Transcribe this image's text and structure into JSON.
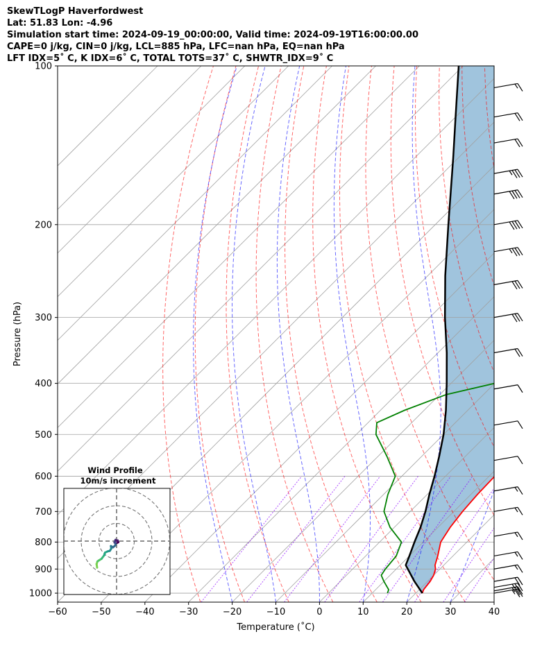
{
  "header": {
    "line1": "SkewTLogP Haverfordwest",
    "line2": "Lat: 51.83   Lon: -4.96",
    "line3": "Simulation start time: 2024-09-19_00:00:00, Valid time: 2024-09-19T16:00:00.00",
    "line4": "CAPE=0 j/kg, CIN=0 j/kg, LCL=885 hPa, LFC=nan hPa, EQ=nan hPa",
    "line5": "LFT IDX=5˚ C, K IDX=6˚ C, TOTAL TOTS=37˚ C, SHWTR_IDX=9˚ C"
  },
  "chart_data": {
    "type": "skew-t log-p",
    "xlabel": "Temperature (˚C)",
    "ylabel": "Pressure (hPa)",
    "xlim": [
      -60,
      40
    ],
    "ylim": [
      1040,
      100
    ],
    "x_ticks": [
      "−60",
      "−50",
      "−40",
      "−30",
      "−20",
      "−10",
      "0",
      "10",
      "20",
      "30",
      "40"
    ],
    "y_ticks": [
      "100",
      "200",
      "300",
      "400",
      "500",
      "600",
      "700",
      "800",
      "900",
      "1000"
    ],
    "grid": true,
    "colors": {
      "temperature": "#ff0000",
      "dewpoint": "#008000",
      "parcel": "#000000",
      "shading": "#a0c4dd",
      "dry_adiabat": "#ff0000",
      "moist_adiabat": "#0000ff",
      "mixing_ratio": "#8b00ff",
      "isotherm": "#a0a0a0"
    },
    "temperature": [
      {
        "p": 1000,
        "t": 21.5
      },
      {
        "p": 985,
        "t": 21.0
      },
      {
        "p": 950,
        "t": 20.6
      },
      {
        "p": 925,
        "t": 20.0
      },
      {
        "p": 900,
        "t": 19.0
      },
      {
        "p": 885,
        "t": 18.0
      },
      {
        "p": 850,
        "t": 16.5
      },
      {
        "p": 800,
        "t": 14.0
      },
      {
        "p": 750,
        "t": 12.8
      },
      {
        "p": 700,
        "t": 12.0
      },
      {
        "p": 650,
        "t": 11.5
      },
      {
        "p": 600,
        "t": 11.3
      },
      {
        "p": 550,
        "t": 11.0
      },
      {
        "p": 500,
        "t": 7.5
      },
      {
        "p": 450,
        "t": 3.0
      },
      {
        "p": 400,
        "t": -1.5
      },
      {
        "p": 370,
        "t": -3.0
      },
      {
        "p": 350,
        "t": -4.5
      },
      {
        "p": 325,
        "t": -8.5
      },
      {
        "p": 300,
        "t": -12.5
      },
      {
        "p": 275,
        "t": -16.5
      },
      {
        "p": 250,
        "t": -21.5
      },
      {
        "p": 225,
        "t": -26.0
      },
      {
        "p": 210,
        "t": -29.0
      },
      {
        "p": 200,
        "t": -30.5
      },
      {
        "p": 190,
        "t": -28.0
      },
      {
        "p": 175,
        "t": -24.5
      },
      {
        "p": 160,
        "t": -20.5
      },
      {
        "p": 150,
        "t": -18.0
      },
      {
        "p": 140,
        "t": -16.5
      },
      {
        "p": 130,
        "t": -16.0
      },
      {
        "p": 120,
        "t": -15.5
      },
      {
        "p": 110,
        "t": -15.0
      },
      {
        "p": 100,
        "t": -15.5
      }
    ],
    "dewpoint": [
      {
        "p": 1000,
        "t": 13.5
      },
      {
        "p": 985,
        "t": 13.0
      },
      {
        "p": 950,
        "t": 10.0
      },
      {
        "p": 925,
        "t": 8.0
      },
      {
        "p": 900,
        "t": 7.5
      },
      {
        "p": 850,
        "t": 7.0
      },
      {
        "p": 800,
        "t": 5.0
      },
      {
        "p": 750,
        "t": -1.0
      },
      {
        "p": 700,
        "t": -6.0
      },
      {
        "p": 650,
        "t": -9.0
      },
      {
        "p": 600,
        "t": -11.5
      },
      {
        "p": 550,
        "t": -18.0
      },
      {
        "p": 500,
        "t": -25.5
      },
      {
        "p": 475,
        "t": -28.0
      },
      {
        "p": 450,
        "t": -24.5
      },
      {
        "p": 420,
        "t": -18.5
      },
      {
        "p": 400,
        "t": -10.0
      },
      {
        "p": 385,
        "t": -3.0
      },
      {
        "p": 370,
        "t": -3.5
      },
      {
        "p": 340,
        "t": -5.5
      },
      {
        "p": 300,
        "t": -10.0
      },
      {
        "p": 275,
        "t": -14.5
      },
      {
        "p": 250,
        "t": -19.5
      },
      {
        "p": 225,
        "t": -24.5
      },
      {
        "p": 200,
        "t": -29.5
      },
      {
        "p": 185,
        "t": -30.0
      },
      {
        "p": 175,
        "t": -30.0
      },
      {
        "p": 160,
        "t": -32.0
      },
      {
        "p": 150,
        "t": -36.5
      },
      {
        "p": 140,
        "t": -40.5
      },
      {
        "p": 130,
        "t": -39.5
      },
      {
        "p": 120,
        "t": -37.5
      },
      {
        "p": 110,
        "t": -34.5
      },
      {
        "p": 100,
        "t": -31.5
      }
    ],
    "parcel": [
      {
        "p": 1000,
        "t": 21.5
      },
      {
        "p": 950,
        "t": 17.0
      },
      {
        "p": 885,
        "t": 11.3
      },
      {
        "p": 850,
        "t": 10.0
      },
      {
        "p": 800,
        "t": 8.0
      },
      {
        "p": 750,
        "t": 6.0
      },
      {
        "p": 700,
        "t": 3.5
      },
      {
        "p": 650,
        "t": 0.5
      },
      {
        "p": 600,
        "t": -2.5
      },
      {
        "p": 550,
        "t": -6.0
      },
      {
        "p": 500,
        "t": -10.0
      },
      {
        "p": 450,
        "t": -15.0
      },
      {
        "p": 400,
        "t": -21.0
      },
      {
        "p": 350,
        "t": -28.0
      },
      {
        "p": 300,
        "t": -36.5
      },
      {
        "p": 250,
        "t": -46.0
      },
      {
        "p": 200,
        "t": -57.0
      },
      {
        "p": 150,
        "t": -71.0
      },
      {
        "p": 125,
        "t": -80.0
      },
      {
        "p": 100,
        "t": -91.0
      }
    ],
    "wind_barbs": [
      {
        "p": 1000,
        "speed_kt": 25
      },
      {
        "p": 990,
        "speed_kt": 25
      },
      {
        "p": 975,
        "speed_kt": 25
      },
      {
        "p": 950,
        "speed_kt": 20
      },
      {
        "p": 900,
        "speed_kt": 15
      },
      {
        "p": 850,
        "speed_kt": 15
      },
      {
        "p": 780,
        "speed_kt": 15
      },
      {
        "p": 700,
        "speed_kt": 15
      },
      {
        "p": 640,
        "speed_kt": 15
      },
      {
        "p": 560,
        "speed_kt": 10
      },
      {
        "p": 480,
        "speed_kt": 10
      },
      {
        "p": 410,
        "speed_kt": 10
      },
      {
        "p": 350,
        "speed_kt": 20
      },
      {
        "p": 300,
        "speed_kt": 30
      },
      {
        "p": 260,
        "speed_kt": 30
      },
      {
        "p": 225,
        "speed_kt": 35
      },
      {
        "p": 200,
        "speed_kt": 40
      },
      {
        "p": 175,
        "speed_kt": 40
      },
      {
        "p": 160,
        "speed_kt": 35
      },
      {
        "p": 140,
        "speed_kt": 20
      },
      {
        "p": 125,
        "speed_kt": 20
      },
      {
        "p": 110,
        "speed_kt": 15
      }
    ]
  },
  "hodograph": {
    "title": "Wind Profile",
    "subtitle": "10m/s increment",
    "rings_ms": [
      10,
      20,
      30
    ],
    "points": [
      {
        "u": -11.0,
        "v": -15.0
      },
      {
        "u": -11.3,
        "v": -13.0
      },
      {
        "u": -10.8,
        "v": -11.5
      },
      {
        "u": -9.8,
        "v": -10.8
      },
      {
        "u": -8.5,
        "v": -10.0
      },
      {
        "u": -7.0,
        "v": -8.0
      },
      {
        "u": -6.5,
        "v": -6.5
      },
      {
        "u": -5.0,
        "v": -5.8
      },
      {
        "u": -3.8,
        "v": -5.5
      },
      {
        "u": -3.0,
        "v": -4.2
      },
      {
        "u": -3.2,
        "v": -2.8
      },
      {
        "u": -2.0,
        "v": -3.5
      },
      {
        "u": -0.8,
        "v": -2.5
      },
      {
        "u": -0.5,
        "v": -1.2
      },
      {
        "u": -1.2,
        "v": -0.8
      },
      {
        "u": -0.9,
        "v": 0.0
      },
      {
        "u": -0.6,
        "v": 0.7
      },
      {
        "u": -0.2,
        "v": 0.2
      },
      {
        "u": 0.6,
        "v": 0.4
      },
      {
        "u": 1.0,
        "v": -0.6
      },
      {
        "u": 0.4,
        "v": -1.0
      }
    ]
  }
}
